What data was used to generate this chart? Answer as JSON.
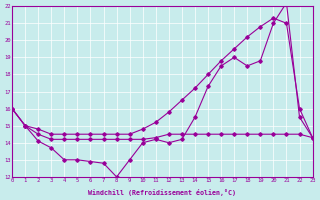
{
  "xlabel": "Windchill (Refroidissement éolien,°C)",
  "bg_color": "#c8ecec",
  "line_color": "#990099",
  "grid_color": "#ffffff",
  "xmin": 0,
  "xmax": 23,
  "ymin": 12,
  "ymax": 22,
  "series1_x": [
    0,
    1,
    2,
    3,
    4,
    5,
    6,
    7,
    8,
    9,
    10,
    11,
    12,
    13,
    14,
    15,
    16,
    17,
    18,
    19,
    20,
    21,
    22,
    23
  ],
  "series1_y": [
    16,
    15,
    14.1,
    13.7,
    13.0,
    13.0,
    12.9,
    12.8,
    12.0,
    13.0,
    14.0,
    14.2,
    14.0,
    14.2,
    15.5,
    17.3,
    18.5,
    19.0,
    18.5,
    18.8,
    21.0,
    22.2,
    15.5,
    14.3
  ],
  "series2_x": [
    0,
    1,
    2,
    3,
    4,
    5,
    6,
    7,
    8,
    9,
    10,
    11,
    12,
    13,
    14,
    15,
    16,
    17,
    18,
    19,
    20,
    21,
    22,
    23
  ],
  "series2_y": [
    16.0,
    15.0,
    14.8,
    14.5,
    14.5,
    14.5,
    14.5,
    14.5,
    14.5,
    14.5,
    14.8,
    15.2,
    15.8,
    16.5,
    17.2,
    18.0,
    18.8,
    19.5,
    20.2,
    20.8,
    21.3,
    21.0,
    16.0,
    14.3
  ],
  "series3_x": [
    0,
    1,
    2,
    3,
    4,
    5,
    6,
    7,
    8,
    9,
    10,
    11,
    12,
    13,
    14,
    15,
    16,
    17,
    18,
    19,
    20,
    21,
    22,
    23
  ],
  "series3_y": [
    16.0,
    15.0,
    14.5,
    14.2,
    14.2,
    14.2,
    14.2,
    14.2,
    14.2,
    14.2,
    14.2,
    14.3,
    14.5,
    14.5,
    14.5,
    14.5,
    14.5,
    14.5,
    14.5,
    14.5,
    14.5,
    14.5,
    14.5,
    14.3
  ]
}
